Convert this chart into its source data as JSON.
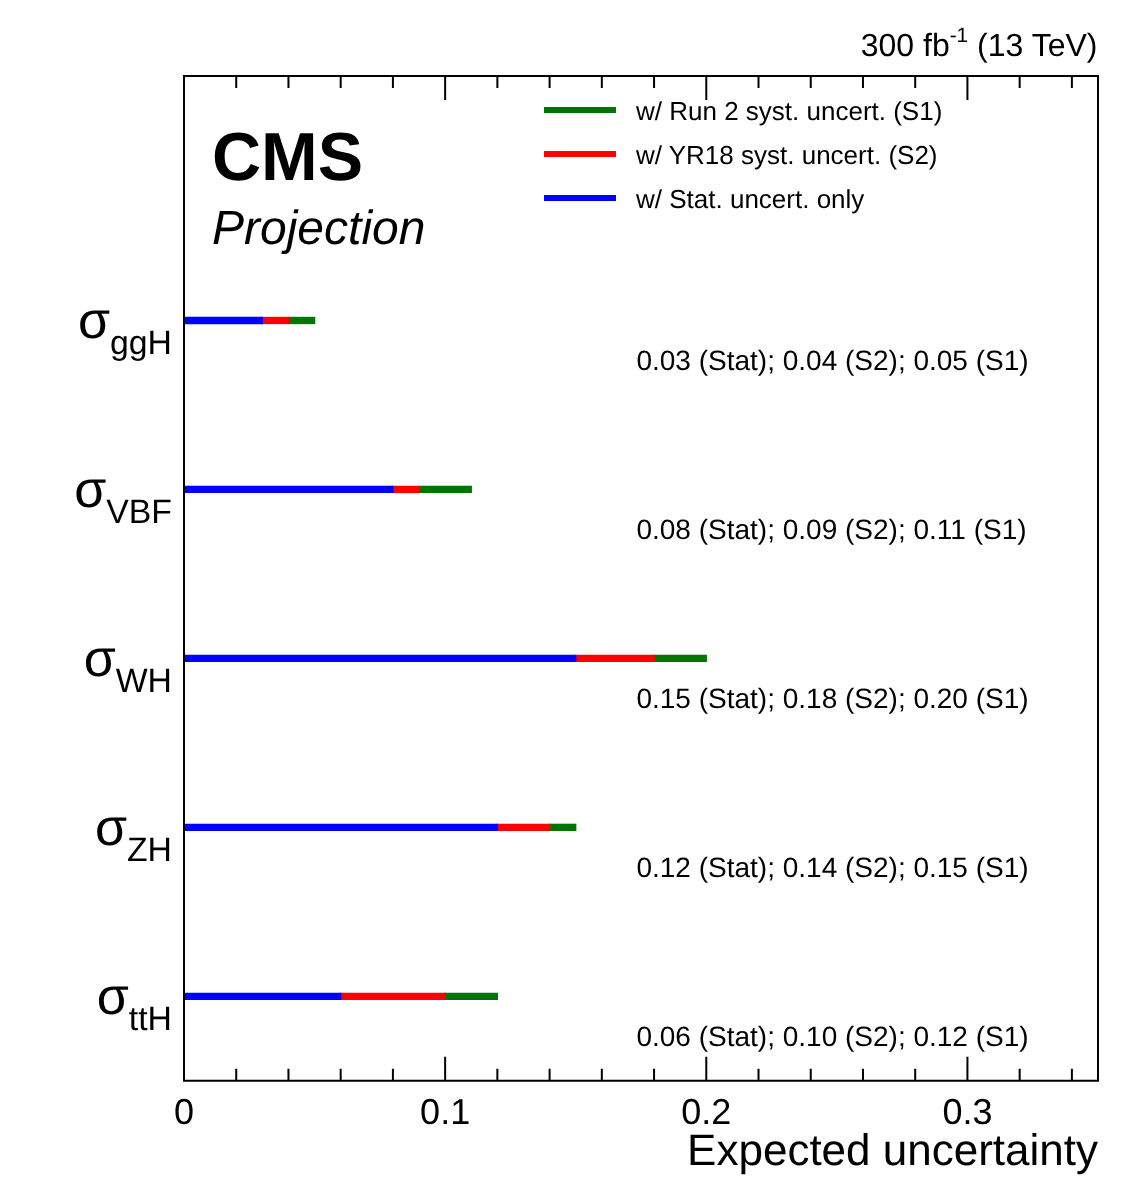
{
  "chart_data": {
    "type": "bar",
    "orientation": "horizontal",
    "stacked": true,
    "title": "300 fb$^{-1}$ (13 TeV)",
    "xlabel": "Expected uncertainty",
    "categories": [
      "σ$_{ggH}$",
      "σ$_{VBF}$",
      "σ$_{WH}$",
      "σ$_{ZH}$",
      "σ$_{ttH}$"
    ],
    "series": [
      {
        "name": "w/ Stat. uncert. only",
        "color": "#0000ff",
        "values": [
          0.03,
          0.08,
          0.15,
          0.12,
          0.06
        ]
      },
      {
        "name": "w/ YR18 syst. uncert. (S2)",
        "color": "#ff0000",
        "values": [
          0.01,
          0.01,
          0.03,
          0.02,
          0.04
        ]
      },
      {
        "name": "w/ Run 2 syst. uncert. (S1)",
        "color": "#007500",
        "values": [
          0.01,
          0.02,
          0.02,
          0.01,
          0.02
        ]
      }
    ],
    "xlim": [
      0,
      0.35
    ],
    "xticks": [
      0,
      0.1,
      0.2,
      0.3
    ],
    "grid": false,
    "legend": "top right",
    "annotations": [
      "0.03 (Stat); 0.04 (S2); 0.05 (S1)",
      "0.08 (Stat); 0.09 (S2); 0.11 (S1)",
      "0.15 (Stat); 0.18 (S2); 0.20 (S1)",
      "0.12 (Stat); 0.14 (S2); 0.15 (S1)",
      "0.06 (Stat); 0.10 (S2); 0.12 (S1)",
      "CMS",
      "Projection"
    ]
  }
}
